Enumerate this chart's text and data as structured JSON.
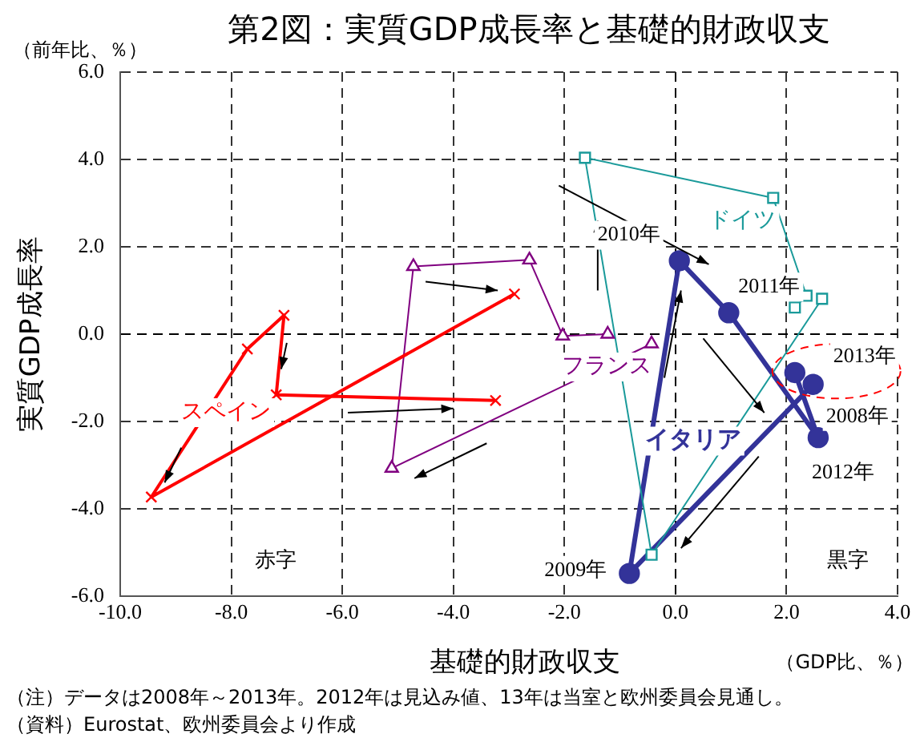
{
  "chart_data": {
    "type": "line",
    "title": "第2図：実質GDP成長率と基礎的財政収支",
    "xlabel": "基礎的財政収支",
    "ylabel": "実質GDP成長率",
    "xlim": [
      -10,
      4
    ],
    "xticks": [
      {
        "value": -10,
        "label": "-10.0"
      },
      {
        "value": -8,
        "label": "-8.0"
      },
      {
        "value": -6,
        "label": "-6.0"
      },
      {
        "value": -4,
        "label": "-4.0"
      },
      {
        "value": -2,
        "label": "-2.0"
      },
      {
        "value": 0,
        "label": "0.0"
      },
      {
        "value": 2,
        "label": "2.0"
      },
      {
        "value": 4,
        "label": "4.0"
      }
    ],
    "ylim": [
      -6,
      6
    ],
    "yticks": [
      {
        "value": -6,
        "label": "-6.0"
      },
      {
        "value": -4,
        "label": "-4.0"
      },
      {
        "value": -2,
        "label": "-2.0"
      },
      {
        "value": 0,
        "label": "0.0"
      },
      {
        "value": 2,
        "label": "2.0"
      },
      {
        "value": 4,
        "label": "4.0"
      },
      {
        "value": 6,
        "label": "6.0"
      }
    ],
    "grid": true,
    "legend": false,
    "series": [
      {
        "name": "スペイン",
        "color": "#ff0000",
        "marker": "cross",
        "x": [
          -2.9,
          -9.44,
          -7.71,
          -7.05,
          -7.19,
          -3.24
        ],
        "values": [
          0.92,
          -3.73,
          -0.34,
          0.43,
          -1.39,
          -1.52
        ]
      },
      {
        "name": "フランス",
        "color": "#800080",
        "marker": "triangle",
        "x": [
          -0.43,
          -5.11,
          -4.72,
          -2.63,
          -2.03,
          -1.22
        ],
        "values": [
          -0.22,
          -3.07,
          1.55,
          1.7,
          -0.04,
          0.0
        ]
      },
      {
        "name": "ドイツ",
        "color": "#1a9a9a",
        "marker": "square",
        "x": [
          2.64,
          -0.43,
          -1.63,
          1.76,
          2.36,
          2.15
        ],
        "values": [
          0.81,
          -5.05,
          4.04,
          3.12,
          0.88,
          0.61
        ]
      },
      {
        "name": "イタリア",
        "color": "#333399",
        "marker": "circle",
        "x": [
          2.48,
          -0.83,
          0.07,
          0.96,
          2.57,
          2.15
        ],
        "values": [
          -1.15,
          -5.48,
          1.68,
          0.49,
          -2.37,
          -0.88
        ]
      }
    ],
    "annotations": [
      "（前年比、％）",
      "（GDP比、％）",
      "赤字",
      "黒字",
      {
        "text": "2008年",
        "x": 2.48,
        "y": -1.15
      },
      {
        "text": "2009年",
        "x": -0.83,
        "y": -5.48
      },
      {
        "text": "2010年",
        "x": 0.07,
        "y": 1.68
      },
      {
        "text": "2011年",
        "x": 0.96,
        "y": 0.49
      },
      {
        "text": "2012年",
        "x": 2.57,
        "y": -2.37
      },
      {
        "text": "2013年",
        "x": 2.15,
        "y": -0.88
      },
      "（注）データは2008年～2013年。2012年は見込み値、13年は当室と欧州委員会見通し。",
      "（資料）Eurostat、欧州委員会より作成"
    ]
  }
}
